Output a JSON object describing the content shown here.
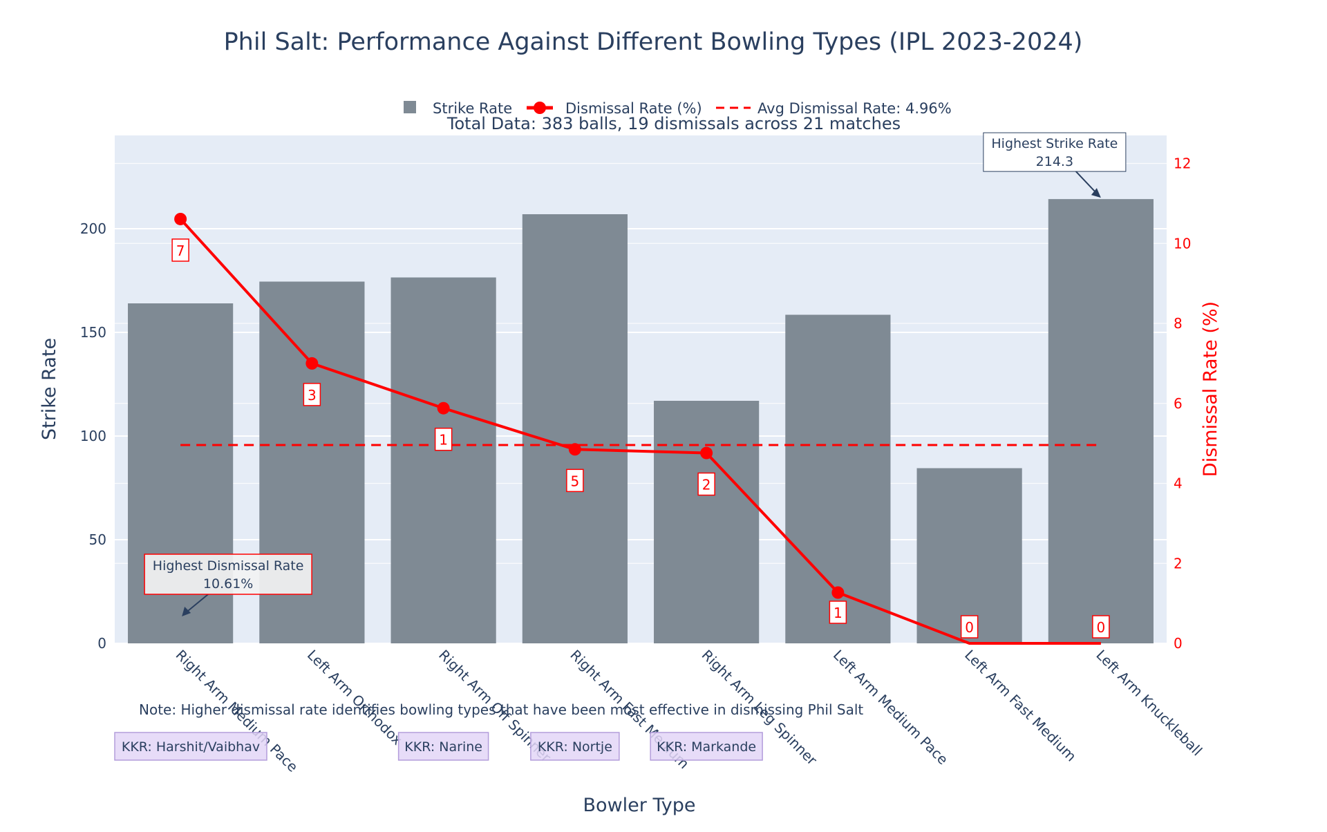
{
  "chart_data": {
    "type": "bar",
    "title": "Phil Salt: Performance Against Different Bowling Types (IPL 2023-2024)",
    "subtitle": "Total Data: 383 balls, 19 dismissals across 21 matches",
    "xlabel": "Bowler Type",
    "ylabel": "Strike Rate",
    "y2label": "Dismissal Rate (%)",
    "ylim": [
      0,
      245
    ],
    "y2lim": [
      0,
      12.7
    ],
    "yticks": [
      0,
      50,
      100,
      150,
      200
    ],
    "y2ticks": [
      0,
      2,
      4,
      6,
      8,
      10,
      12
    ],
    "categories": [
      "Right Arm Medium Pace",
      "Left Arm Orthodox",
      "Right Arm Off Spinner",
      "Right Arm Fast Medium",
      "Right Arm Leg Spinner",
      "Left Arm Medium Pace",
      "Left Arm Fast Medium",
      "Left Arm Knuckleball"
    ],
    "series": [
      {
        "name": "Strike Rate",
        "axis": "y",
        "kind": "bar",
        "color": "#7f8a94",
        "values": [
          164,
          174.5,
          176.5,
          207,
          117,
          158.5,
          84.5,
          214.3
        ]
      },
      {
        "name": "Dismissal Rate (%)",
        "axis": "y2",
        "kind": "line",
        "color": "#ff0000",
        "values": [
          10.61,
          7.0,
          5.88,
          4.85,
          4.76,
          1.27,
          0,
          0
        ]
      }
    ],
    "average_line": {
      "name": "Avg Dismissal Rate: 4.96%",
      "value": 4.96,
      "axis": "y2",
      "color": "#ff0000"
    },
    "dismissal_counts": [
      "7",
      "3",
      "1",
      "5",
      "2",
      "1",
      "0",
      "0"
    ],
    "legend": {
      "position": "top-center",
      "items": [
        "Strike Rate",
        "Dismissal Rate (%)",
        "Avg Dismissal Rate: 4.96%"
      ]
    },
    "annotations": {
      "highest_strike_rate": {
        "label": "Highest Strike Rate",
        "value_text": "214.3",
        "category_index": 7
      },
      "highest_dismissal_rate": {
        "label": "Highest Dismissal Rate",
        "value_text": "10.61%",
        "category_index": 0
      }
    },
    "note": "Note: Higher dismissal rate identifies bowling types that have been most effective in dismissing Phil Salt",
    "team_tags": [
      {
        "text": "KKR: Harshit/Vaibhav",
        "category_index": 0
      },
      {
        "text": "KKR: Narine",
        "category_index": 2
      },
      {
        "text": "KKR: Nortje",
        "category_index": 3
      },
      {
        "text": "KKR: Markande",
        "category_index": 4
      }
    ],
    "colors": {
      "plot_bg": "#e5ecf6",
      "bar": "#7f8a94",
      "line": "#ff0000",
      "text": "#2a3f5f",
      "tag_fill": "#e3d6f7",
      "tag_border": "#b39ddb"
    }
  }
}
